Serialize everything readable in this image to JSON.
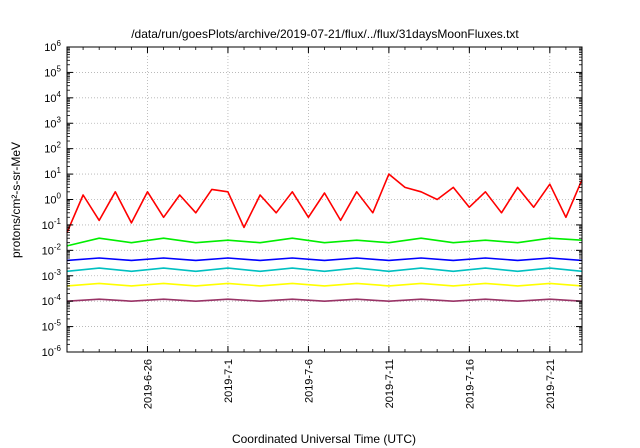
{
  "chart_data": {
    "type": "line",
    "title": "/data/run/goesPlots/archive/2019-07-21/flux/../flux/31daysMoonFluxes.txt",
    "xlabel": "Coordinated Universal Time (UTC)",
    "ylabel": "protons/cm²-s-sr-MeV",
    "yscale": "log",
    "ylim": [
      1e-06,
      1000000.0
    ],
    "xlim": [
      "2019-06-21",
      "2019-07-23"
    ],
    "grid": true,
    "legend": "none",
    "y_tick_labels": [
      {
        "base": "10",
        "exp": "-6"
      },
      {
        "base": "10",
        "exp": "-5"
      },
      {
        "base": "10",
        "exp": "-4"
      },
      {
        "base": "10",
        "exp": "-3"
      },
      {
        "base": "10",
        "exp": "-2"
      },
      {
        "base": "10",
        "exp": "-1"
      },
      {
        "base": "10",
        "exp": "0"
      },
      {
        "base": "10",
        "exp": "1"
      },
      {
        "base": "10",
        "exp": "2"
      },
      {
        "base": "10",
        "exp": "3"
      },
      {
        "base": "10",
        "exp": "4"
      },
      {
        "base": "10",
        "exp": "5"
      },
      {
        "base": "10",
        "exp": "6"
      }
    ],
    "x_tick_labels": [
      "2019-6-26",
      "2019-7-1",
      "2019-7-6",
      "2019-7-11",
      "2019-7-16",
      "2019-7-21"
    ],
    "x_ticks": [
      "2019-06-26",
      "2019-07-01",
      "2019-07-06",
      "2019-07-11",
      "2019-07-16",
      "2019-07-21"
    ],
    "series": [
      {
        "color": "#ff0000",
        "x": [
          "2019-06-21",
          "2019-06-22",
          "2019-06-23",
          "2019-06-24",
          "2019-06-25",
          "2019-06-26",
          "2019-06-27",
          "2019-06-28",
          "2019-06-29",
          "2019-06-30",
          "2019-07-01",
          "2019-07-02",
          "2019-07-03",
          "2019-07-04",
          "2019-07-05",
          "2019-07-06",
          "2019-07-07",
          "2019-07-08",
          "2019-07-09",
          "2019-07-10",
          "2019-07-11",
          "2019-07-12",
          "2019-07-13",
          "2019-07-14",
          "2019-07-15",
          "2019-07-16",
          "2019-07-17",
          "2019-07-18",
          "2019-07-19",
          "2019-07-20",
          "2019-07-21",
          "2019-07-22",
          "2019-07-23"
        ],
        "y": [
          0.05,
          1.5,
          0.15,
          2.0,
          0.12,
          2.0,
          0.2,
          1.5,
          0.3,
          2.5,
          2.0,
          0.08,
          1.5,
          0.3,
          2.0,
          0.2,
          1.8,
          0.15,
          2.0,
          0.3,
          10,
          3,
          2,
          1,
          3,
          0.5,
          2,
          0.3,
          3,
          0.5,
          4,
          0.2,
          6
        ]
      },
      {
        "color": "#00ee00",
        "x": [
          "2019-06-21",
          "2019-06-23",
          "2019-06-25",
          "2019-06-27",
          "2019-06-29",
          "2019-07-01",
          "2019-07-03",
          "2019-07-05",
          "2019-07-07",
          "2019-07-09",
          "2019-07-11",
          "2019-07-13",
          "2019-07-15",
          "2019-07-17",
          "2019-07-19",
          "2019-07-21",
          "2019-07-23"
        ],
        "y": [
          0.015,
          0.03,
          0.02,
          0.03,
          0.02,
          0.025,
          0.02,
          0.03,
          0.02,
          0.025,
          0.02,
          0.03,
          0.02,
          0.025,
          0.02,
          0.03,
          0.025
        ]
      },
      {
        "color": "#0000ff",
        "x": [
          "2019-06-21",
          "2019-06-23",
          "2019-06-25",
          "2019-06-27",
          "2019-06-29",
          "2019-07-01",
          "2019-07-03",
          "2019-07-05",
          "2019-07-07",
          "2019-07-09",
          "2019-07-11",
          "2019-07-13",
          "2019-07-15",
          "2019-07-17",
          "2019-07-19",
          "2019-07-21",
          "2019-07-23"
        ],
        "y": [
          0.004,
          0.005,
          0.004,
          0.005,
          0.004,
          0.005,
          0.004,
          0.005,
          0.004,
          0.005,
          0.004,
          0.005,
          0.004,
          0.005,
          0.004,
          0.005,
          0.004
        ]
      },
      {
        "color": "#00c0c0",
        "x": [
          "2019-06-21",
          "2019-06-23",
          "2019-06-25",
          "2019-06-27",
          "2019-06-29",
          "2019-07-01",
          "2019-07-03",
          "2019-07-05",
          "2019-07-07",
          "2019-07-09",
          "2019-07-11",
          "2019-07-13",
          "2019-07-15",
          "2019-07-17",
          "2019-07-19",
          "2019-07-21",
          "2019-07-23"
        ],
        "y": [
          0.0015,
          0.002,
          0.0015,
          0.002,
          0.0015,
          0.002,
          0.0015,
          0.002,
          0.0015,
          0.002,
          0.0015,
          0.002,
          0.0015,
          0.002,
          0.0015,
          0.002,
          0.0015
        ]
      },
      {
        "color": "#ffff00",
        "x": [
          "2019-06-21",
          "2019-06-23",
          "2019-06-25",
          "2019-06-27",
          "2019-06-29",
          "2019-07-01",
          "2019-07-03",
          "2019-07-05",
          "2019-07-07",
          "2019-07-09",
          "2019-07-11",
          "2019-07-13",
          "2019-07-15",
          "2019-07-17",
          "2019-07-19",
          "2019-07-21",
          "2019-07-23"
        ],
        "y": [
          0.0004,
          0.0005,
          0.0004,
          0.0005,
          0.0004,
          0.0005,
          0.0004,
          0.0005,
          0.0004,
          0.0005,
          0.0004,
          0.0005,
          0.0004,
          0.0005,
          0.0004,
          0.0005,
          0.0004
        ]
      },
      {
        "color": "#993366",
        "x": [
          "2019-06-21",
          "2019-06-23",
          "2019-06-25",
          "2019-06-27",
          "2019-06-29",
          "2019-07-01",
          "2019-07-03",
          "2019-07-05",
          "2019-07-07",
          "2019-07-09",
          "2019-07-11",
          "2019-07-13",
          "2019-07-15",
          "2019-07-17",
          "2019-07-19",
          "2019-07-21",
          "2019-07-23"
        ],
        "y": [
          0.0001,
          0.00012,
          0.0001,
          0.00012,
          0.0001,
          0.00012,
          0.0001,
          0.00012,
          0.0001,
          0.00012,
          0.0001,
          0.00012,
          0.0001,
          0.00012,
          0.0001,
          0.00012,
          0.0001
        ]
      }
    ]
  }
}
